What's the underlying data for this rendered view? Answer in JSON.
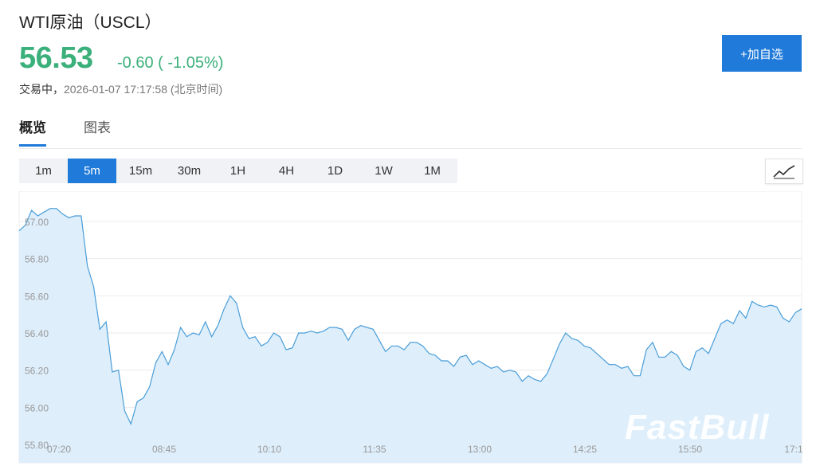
{
  "header": {
    "title": "WTI原油（USCL）",
    "price": "56.53",
    "change": "-0.60 ( -1.05%)",
    "status_label": "交易中，",
    "timestamp": "2026-01-07 17:17:58 (北京时间)",
    "add_button": "+加自选"
  },
  "tabs": [
    {
      "label": "概览",
      "active": true
    },
    {
      "label": "图表",
      "active": false
    }
  ],
  "intervals": [
    "1m",
    "5m",
    "15m",
    "30m",
    "1H",
    "4H",
    "1D",
    "1W",
    "1M"
  ],
  "selected_interval": "5m",
  "chart_type_icon": "line-chart-icon",
  "watermark": "FastBull",
  "colors": {
    "accent": "#1f7ad9",
    "positive": "#3bb07a",
    "line": "#4a9ed8",
    "fill": "#deeefb"
  },
  "chart_data": {
    "type": "area",
    "title": "",
    "xlabel": "",
    "ylabel": "",
    "ylim": [
      55.8,
      57.1
    ],
    "y_ticks": [
      "57.00",
      "56.80",
      "56.60",
      "56.40",
      "56.20",
      "56.00",
      "55.80"
    ],
    "x_ticks": [
      "07:20",
      "08:45",
      "10:10",
      "11:35",
      "13:00",
      "14:25",
      "15:50",
      "17:1"
    ],
    "grid": "horizontal",
    "series": [
      {
        "values": [
          56.95,
          56.98,
          57.06,
          57.03,
          57.05,
          57.07,
          57.07,
          57.04,
          57.02,
          57.03,
          57.03,
          56.76,
          56.65,
          56.42,
          56.46,
          56.19,
          56.2,
          55.98,
          55.91,
          56.03,
          56.05,
          56.11,
          56.24,
          56.3,
          56.23,
          56.31,
          56.43,
          56.38,
          56.4,
          56.39,
          56.46,
          56.38,
          56.44,
          56.53,
          56.6,
          56.56,
          56.43,
          56.37,
          56.38,
          56.33,
          56.35,
          56.4,
          56.38,
          56.31,
          56.32,
          56.4,
          56.4,
          56.41,
          56.4,
          56.41,
          56.43,
          56.43,
          56.42,
          56.36,
          56.42,
          56.44,
          56.43,
          56.42,
          56.36,
          56.3,
          56.33,
          56.33,
          56.31,
          56.35,
          56.35,
          56.33,
          56.29,
          56.28,
          56.25,
          56.25,
          56.22,
          56.27,
          56.28,
          56.23,
          56.25,
          56.23,
          56.21,
          56.22,
          56.19,
          56.2,
          56.19,
          56.14,
          56.17,
          56.15,
          56.14,
          56.18,
          56.26,
          56.34,
          56.4,
          56.37,
          56.36,
          56.33,
          56.32,
          56.29,
          56.26,
          56.23,
          56.23,
          56.21,
          56.22,
          56.17,
          56.17,
          56.31,
          56.35,
          56.27,
          56.27,
          56.3,
          56.28,
          56.22,
          56.2,
          56.3,
          56.32,
          56.29,
          56.37,
          56.45,
          56.47,
          56.45,
          56.52,
          56.48,
          56.57,
          56.55,
          56.54,
          56.55,
          56.54,
          56.48,
          56.46,
          56.51,
          56.53
        ]
      }
    ]
  }
}
